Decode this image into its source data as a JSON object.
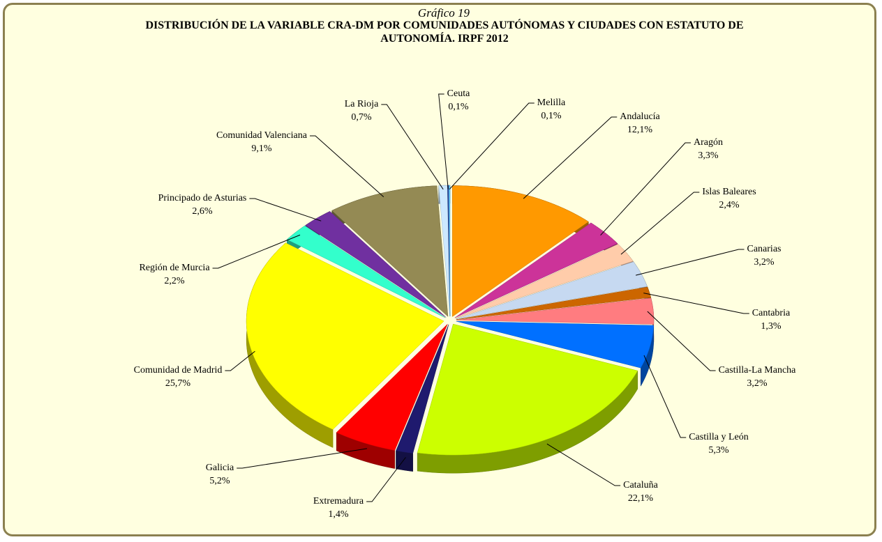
{
  "chart_data": {
    "type": "pie",
    "caption": "Gráfico 19",
    "title": "DISTRIBUCIÓN DE LA VARIABLE CRA-DM POR COMUNIDADES AUTÓNOMAS Y CIUDADES CON ESTATUTO DE AUTONOMÍA. IRPF 2012",
    "categories": [
      "Andalucía",
      "Aragón",
      "Islas Baleares",
      "Canarias",
      "Cantabria",
      "Castilla-La Mancha",
      "Castilla y León",
      "Cataluña",
      "Extremadura",
      "Galicia",
      "Comunidad de Madrid",
      "Región de Murcia",
      "Principado de Asturias",
      "Comunidad Valenciana",
      "La Rioja",
      "Ceuta",
      "Melilla"
    ],
    "values": [
      12.1,
      3.3,
      2.4,
      3.2,
      1.3,
      3.2,
      5.3,
      22.1,
      1.4,
      5.2,
      25.7,
      2.2,
      2.6,
      9.1,
      0.7,
      0.1,
      0.1
    ],
    "value_labels": [
      "12,1%",
      "3,3%",
      "2,4%",
      "3,2%",
      "1,3%",
      "3,2%",
      "5,3%",
      "22,1%",
      "1,4%",
      "5,2%",
      "25,7%",
      "2,2%",
      "2,6%",
      "9,1%",
      "0,7%",
      "0,1%",
      "0,1%"
    ],
    "colors": [
      "#ff9900",
      "#cc3399",
      "#ffccaa",
      "#c6d9f1",
      "#cc6600",
      "#ff7c80",
      "#0070ff",
      "#ccff00",
      "#1f1a6e",
      "#ff0000",
      "#ffff00",
      "#33ffcc",
      "#7030a0",
      "#948a54",
      "#cce8ff",
      "#1f3f99",
      "#66ccff"
    ]
  }
}
